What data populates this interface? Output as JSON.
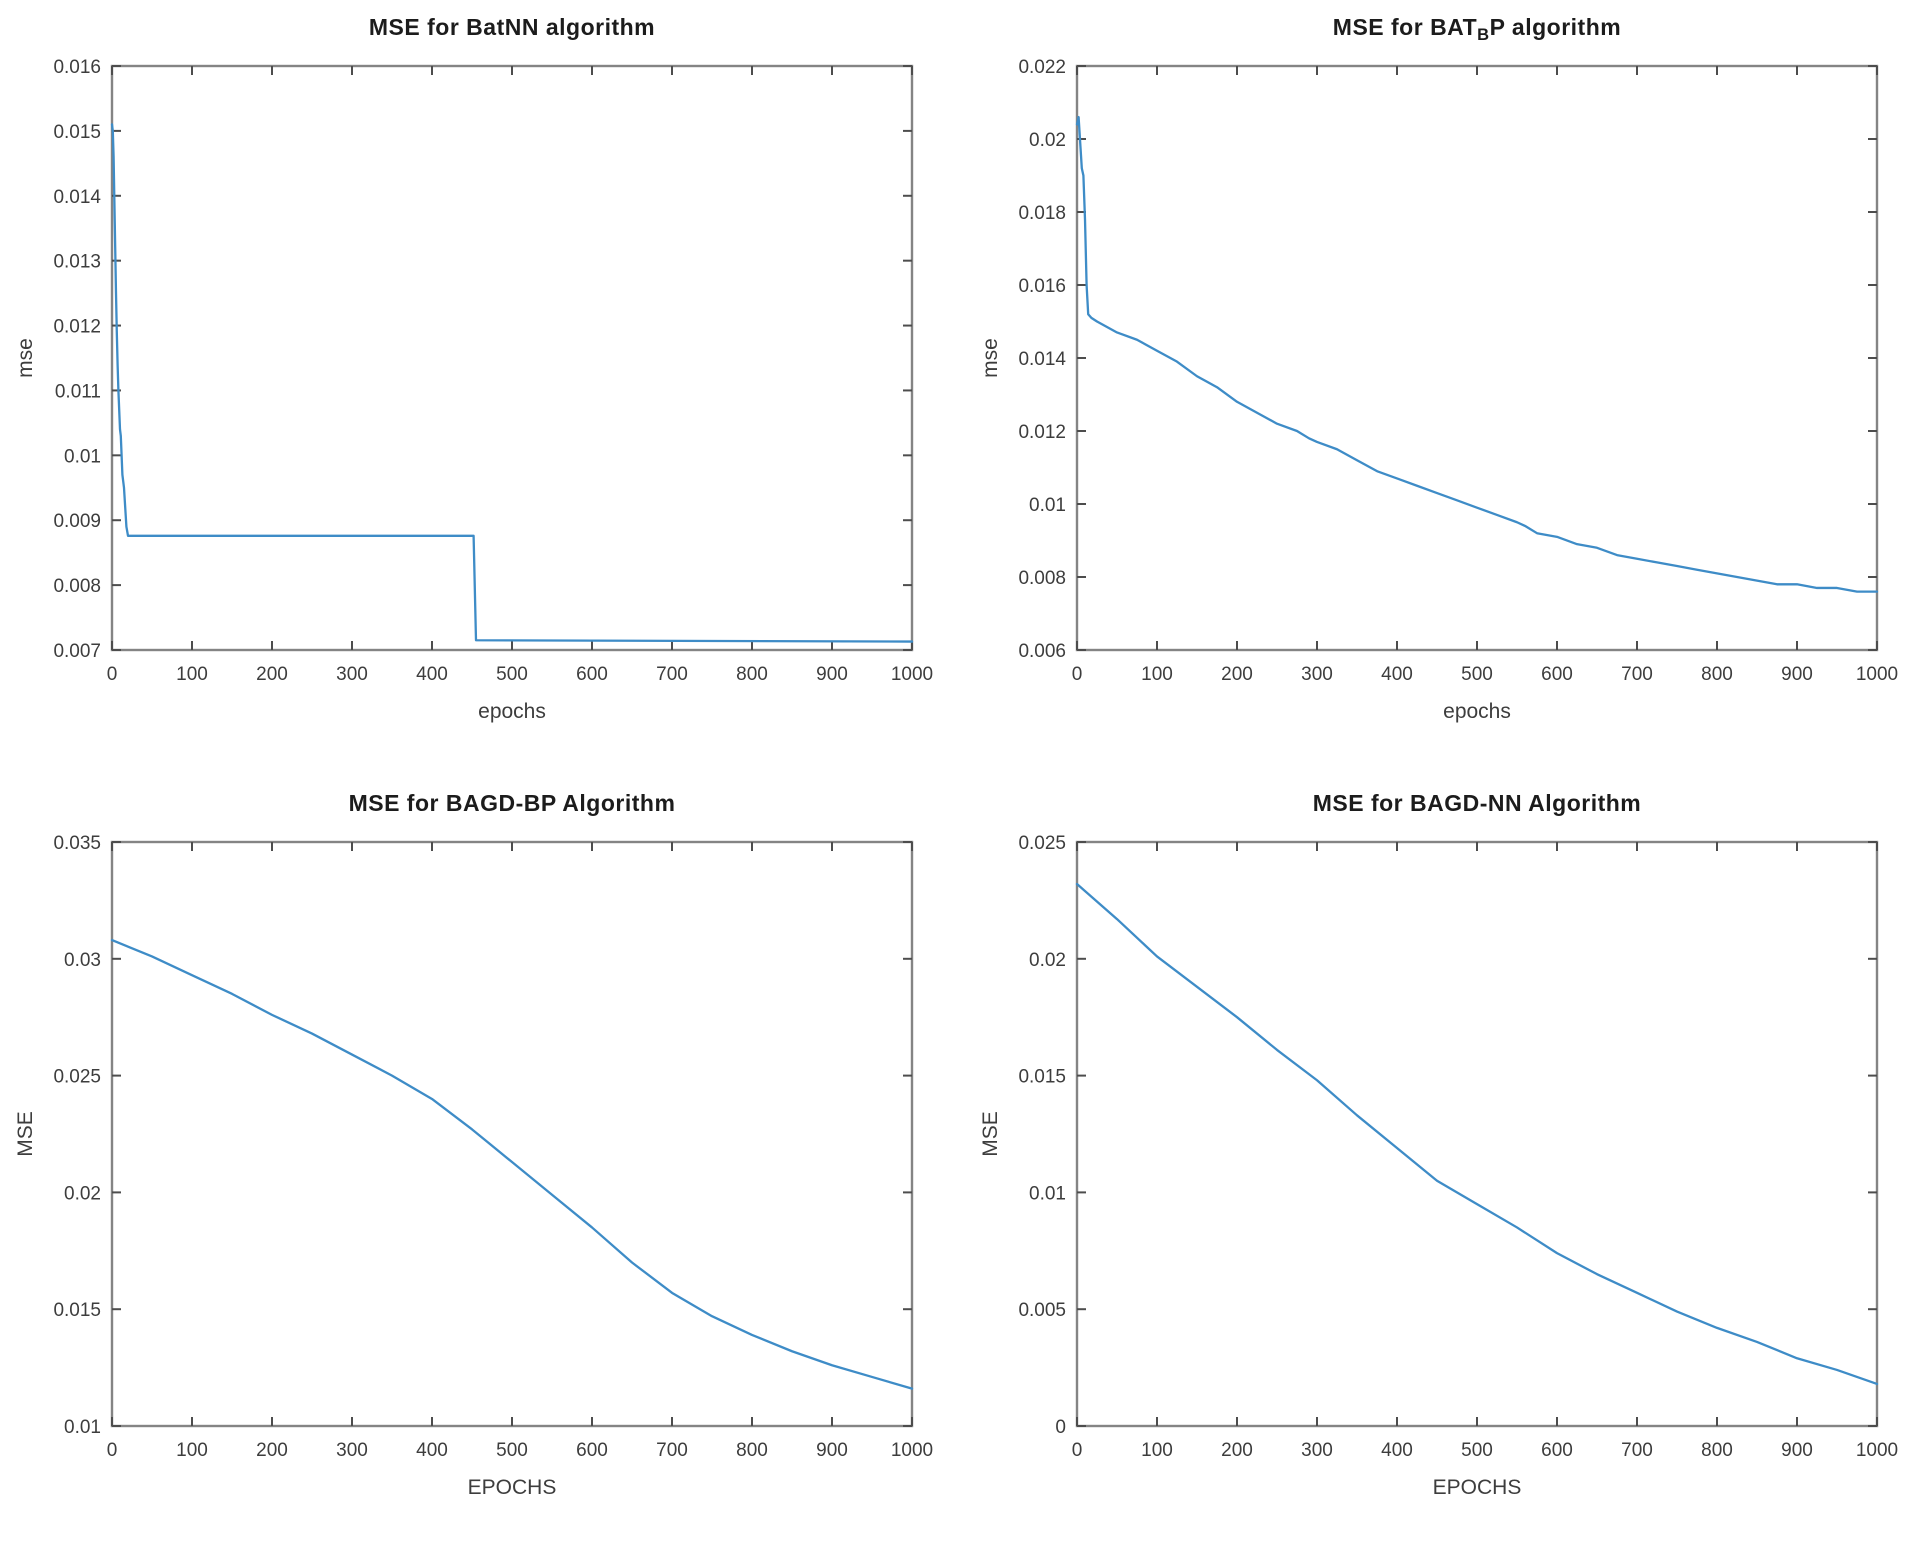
{
  "page": {
    "background": "#ffffff"
  },
  "chart_data": [
    {
      "id": "batnn",
      "type": "line",
      "title_prefix": "MSE for BatNN algorithm",
      "title_sub": "",
      "title_suffix": "",
      "xlabel": "epochs",
      "ylabel": "mse",
      "xlim": [
        0,
        1000
      ],
      "ylim": [
        0.007,
        0.016
      ],
      "grid": false,
      "legend": "none",
      "xticks": [
        0,
        100,
        200,
        300,
        400,
        500,
        600,
        700,
        800,
        900,
        1000
      ],
      "ytick_values": [
        0.007,
        0.008,
        0.009,
        0.01,
        0.011,
        0.012,
        0.013,
        0.014,
        0.015,
        0.016
      ],
      "ytick_labels": [
        "0.007",
        "0.008",
        "0.009",
        "0.01",
        "0.011",
        "0.012",
        "0.013",
        "0.014",
        "0.015",
        "0.016"
      ],
      "line_color": "#3e8cc7",
      "points": [
        [
          0,
          0.0151
        ],
        [
          1,
          0.015
        ],
        [
          2,
          0.0146
        ],
        [
          3,
          0.0139
        ],
        [
          4,
          0.0132
        ],
        [
          5,
          0.0125
        ],
        [
          6,
          0.0119
        ],
        [
          7,
          0.0114
        ],
        [
          8,
          0.011
        ],
        [
          9,
          0.0107
        ],
        [
          10,
          0.0104
        ],
        [
          11,
          0.0103
        ],
        [
          12,
          0.01
        ],
        [
          13,
          0.0097
        ],
        [
          14,
          0.0096
        ],
        [
          15,
          0.0095
        ],
        [
          16,
          0.0093
        ],
        [
          17,
          0.0091
        ],
        [
          18,
          0.0089
        ],
        [
          20,
          0.00876
        ],
        [
          452,
          0.00876
        ],
        [
          455,
          0.00715
        ],
        [
          1000,
          0.00713
        ]
      ]
    },
    {
      "id": "bat-bp",
      "type": "line",
      "title_prefix": "MSE for BAT",
      "title_sub": "B",
      "title_suffix": "P algorithm",
      "xlabel": "epochs",
      "ylabel": "mse",
      "xlim": [
        0,
        1000
      ],
      "ylim": [
        0.006,
        0.022
      ],
      "grid": false,
      "legend": "none",
      "xticks": [
        0,
        100,
        200,
        300,
        400,
        500,
        600,
        700,
        800,
        900,
        1000
      ],
      "ytick_values": [
        0.006,
        0.008,
        0.01,
        0.012,
        0.014,
        0.016,
        0.018,
        0.02,
        0.022
      ],
      "ytick_labels": [
        "0.006",
        "0.008",
        "0.01",
        "0.012",
        "0.014",
        "0.016",
        "0.018",
        "0.02",
        "0.022"
      ],
      "line_color": "#3e8cc7",
      "points": [
        [
          0,
          0.0204
        ],
        [
          2,
          0.0206
        ],
        [
          4,
          0.0199
        ],
        [
          6,
          0.0192
        ],
        [
          8,
          0.019
        ],
        [
          10,
          0.0178
        ],
        [
          12,
          0.016
        ],
        [
          14,
          0.0152
        ],
        [
          18,
          0.0151
        ],
        [
          25,
          0.015
        ],
        [
          50,
          0.0147
        ],
        [
          75,
          0.0145
        ],
        [
          100,
          0.0142
        ],
        [
          125,
          0.0139
        ],
        [
          150,
          0.0135
        ],
        [
          175,
          0.0132
        ],
        [
          200,
          0.0128
        ],
        [
          225,
          0.0125
        ],
        [
          250,
          0.0122
        ],
        [
          275,
          0.012
        ],
        [
          290,
          0.0118
        ],
        [
          300,
          0.0117
        ],
        [
          325,
          0.0115
        ],
        [
          350,
          0.0112
        ],
        [
          375,
          0.0109
        ],
        [
          400,
          0.0107
        ],
        [
          425,
          0.0105
        ],
        [
          450,
          0.0103
        ],
        [
          475,
          0.0101
        ],
        [
          500,
          0.0099
        ],
        [
          525,
          0.0097
        ],
        [
          550,
          0.0095
        ],
        [
          560,
          0.0094
        ],
        [
          575,
          0.0092
        ],
        [
          600,
          0.0091
        ],
        [
          625,
          0.0089
        ],
        [
          650,
          0.0088
        ],
        [
          675,
          0.0086
        ],
        [
          700,
          0.0085
        ],
        [
          725,
          0.0084
        ],
        [
          750,
          0.0083
        ],
        [
          775,
          0.0082
        ],
        [
          800,
          0.0081
        ],
        [
          825,
          0.008
        ],
        [
          850,
          0.0079
        ],
        [
          875,
          0.0078
        ],
        [
          900,
          0.0078
        ],
        [
          925,
          0.0077
        ],
        [
          950,
          0.0077
        ],
        [
          975,
          0.0076
        ],
        [
          1000,
          0.0076
        ]
      ]
    },
    {
      "id": "bagd-bp",
      "type": "line",
      "title_prefix": "MSE for BAGD-BP Algorithm",
      "title_sub": "",
      "title_suffix": "",
      "xlabel": "EPOCHS",
      "ylabel": "MSE",
      "xlim": [
        0,
        1000
      ],
      "ylim": [
        0.01,
        0.035
      ],
      "grid": false,
      "legend": "none",
      "xticks": [
        0,
        100,
        200,
        300,
        400,
        500,
        600,
        700,
        800,
        900,
        1000
      ],
      "ytick_values": [
        0.01,
        0.015,
        0.02,
        0.025,
        0.03,
        0.035
      ],
      "ytick_labels": [
        "0.01",
        "0.015",
        "0.02",
        "0.025",
        "0.03",
        "0.035"
      ],
      "line_color": "#3e8cc7",
      "points": [
        [
          0,
          0.0308
        ],
        [
          50,
          0.0301
        ],
        [
          100,
          0.0293
        ],
        [
          150,
          0.0285
        ],
        [
          200,
          0.0276
        ],
        [
          250,
          0.0268
        ],
        [
          300,
          0.0259
        ],
        [
          350,
          0.025
        ],
        [
          400,
          0.024
        ],
        [
          450,
          0.0227
        ],
        [
          500,
          0.0213
        ],
        [
          550,
          0.0199
        ],
        [
          600,
          0.0185
        ],
        [
          650,
          0.017
        ],
        [
          700,
          0.0157
        ],
        [
          750,
          0.0147
        ],
        [
          800,
          0.0139
        ],
        [
          850,
          0.0132
        ],
        [
          900,
          0.0126
        ],
        [
          950,
          0.0121
        ],
        [
          1000,
          0.0116
        ]
      ]
    },
    {
      "id": "bagd-nn",
      "type": "line",
      "title_prefix": "MSE for BAGD-NN Algorithm",
      "title_sub": "",
      "title_suffix": "",
      "xlabel": "EPOCHS",
      "ylabel": "MSE",
      "xlim": [
        0,
        1000
      ],
      "ylim": [
        0,
        0.025
      ],
      "grid": false,
      "legend": "none",
      "xticks": [
        0,
        100,
        200,
        300,
        400,
        500,
        600,
        700,
        800,
        900,
        1000
      ],
      "ytick_values": [
        0,
        0.005,
        0.01,
        0.015,
        0.02,
        0.025
      ],
      "ytick_labels": [
        "0",
        "0.005",
        "0.01",
        "0.015",
        "0.02",
        "0.025"
      ],
      "line_color": "#3e8cc7",
      "points": [
        [
          0,
          0.0232
        ],
        [
          50,
          0.0217
        ],
        [
          100,
          0.0201
        ],
        [
          150,
          0.0188
        ],
        [
          200,
          0.0175
        ],
        [
          250,
          0.0161
        ],
        [
          300,
          0.0148
        ],
        [
          350,
          0.0133
        ],
        [
          400,
          0.0119
        ],
        [
          450,
          0.0105
        ],
        [
          500,
          0.0095
        ],
        [
          550,
          0.0085
        ],
        [
          600,
          0.0074
        ],
        [
          650,
          0.0065
        ],
        [
          700,
          0.0057
        ],
        [
          750,
          0.0049
        ],
        [
          800,
          0.0042
        ],
        [
          850,
          0.0036
        ],
        [
          900,
          0.0029
        ],
        [
          950,
          0.0024
        ],
        [
          1000,
          0.0018
        ]
      ]
    }
  ]
}
